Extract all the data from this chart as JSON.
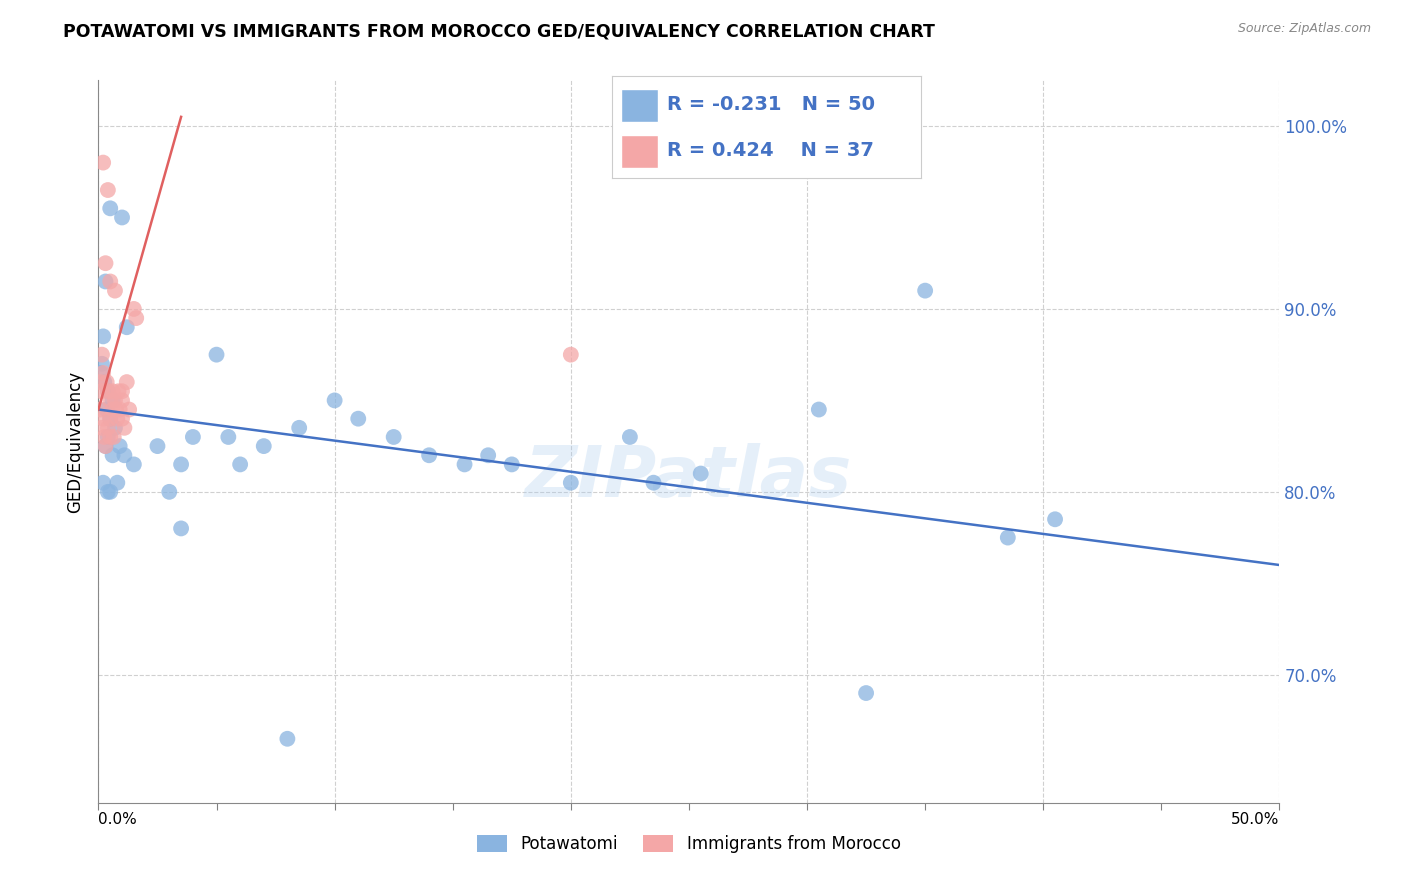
{
  "title": "POTAWATOMI VS IMMIGRANTS FROM MOROCCO GED/EQUIVALENCY CORRELATION CHART",
  "source": "Source: ZipAtlas.com",
  "ylabel": "GED/Equivalency",
  "xlim": [
    0.0,
    50.0
  ],
  "ylim": [
    63.0,
    102.5
  ],
  "yticks": [
    70.0,
    80.0,
    90.0,
    100.0
  ],
  "ytick_labels": [
    "70.0%",
    "80.0%",
    "90.0%",
    "100.0%"
  ],
  "watermark": "ZIPatlas",
  "blue_color": "#8ab4e0",
  "pink_color": "#f4a7a7",
  "blue_line_color": "#4472c4",
  "pink_line_color": "#e06060",
  "legend_blue_label": "Potawatomi",
  "legend_pink_label": "Immigrants from Morocco",
  "R_blue": -0.231,
  "N_blue": 50,
  "R_pink": 0.424,
  "N_pink": 37,
  "blue_points_x": [
    0.5,
    1.0,
    0.3,
    0.2,
    0.15,
    0.1,
    0.25,
    0.4,
    0.6,
    0.35,
    0.5,
    0.7,
    0.4,
    0.3,
    0.6,
    0.9,
    1.1,
    0.2,
    0.4,
    0.8,
    1.2,
    0.5,
    1.5,
    2.5,
    3.0,
    3.5,
    4.0,
    5.0,
    5.5,
    6.0,
    7.0,
    8.5,
    10.0,
    11.0,
    12.5,
    14.0,
    15.5,
    16.5,
    17.5,
    20.0,
    22.5,
    23.5,
    25.5,
    30.5,
    35.0,
    38.5,
    40.5,
    32.5,
    8.0,
    3.5
  ],
  "blue_points_y": [
    95.5,
    95.0,
    91.5,
    88.5,
    87.0,
    86.5,
    86.0,
    85.5,
    85.0,
    84.5,
    84.0,
    83.5,
    83.0,
    82.5,
    82.0,
    82.5,
    82.0,
    80.5,
    80.0,
    80.5,
    89.0,
    80.0,
    81.5,
    82.5,
    80.0,
    81.5,
    83.0,
    87.5,
    83.0,
    81.5,
    82.5,
    83.5,
    85.0,
    84.0,
    83.0,
    82.0,
    81.5,
    82.0,
    81.5,
    80.5,
    83.0,
    80.5,
    81.0,
    84.5,
    91.0,
    77.5,
    78.5,
    69.0,
    66.5,
    78.0
  ],
  "pink_points_x": [
    0.08,
    0.12,
    0.08,
    0.2,
    0.15,
    0.25,
    0.3,
    0.15,
    0.2,
    0.35,
    0.4,
    0.4,
    0.5,
    0.5,
    0.5,
    0.6,
    0.6,
    0.65,
    0.7,
    0.75,
    0.8,
    0.85,
    0.9,
    1.0,
    1.0,
    1.0,
    1.1,
    1.2,
    1.3,
    0.3,
    0.5,
    0.7,
    1.5,
    1.6,
    0.2,
    0.4,
    20.0
  ],
  "pink_points_y": [
    86.0,
    85.5,
    84.5,
    84.0,
    83.5,
    83.0,
    82.5,
    87.5,
    86.5,
    86.0,
    85.5,
    83.5,
    85.0,
    84.0,
    83.0,
    85.5,
    84.5,
    83.0,
    85.0,
    84.5,
    84.0,
    85.5,
    84.5,
    85.5,
    85.0,
    84.0,
    83.5,
    86.0,
    84.5,
    92.5,
    91.5,
    91.0,
    90.0,
    89.5,
    98.0,
    96.5,
    87.5
  ],
  "pink_line_x0": 0.0,
  "pink_line_y0": 84.5,
  "pink_line_x1": 3.5,
  "pink_line_y1": 100.5,
  "blue_line_x0": 0.0,
  "blue_line_y0": 84.5,
  "blue_line_x1": 50.0,
  "blue_line_y1": 76.0
}
